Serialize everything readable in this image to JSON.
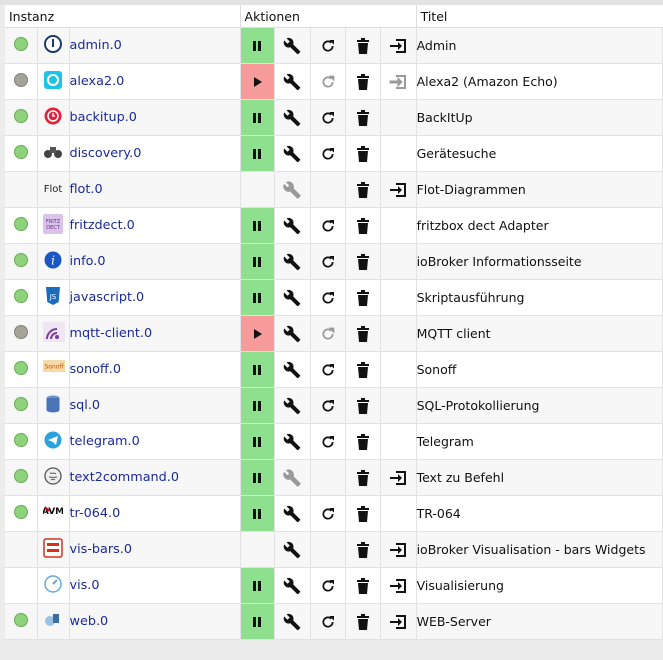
{
  "headers": {
    "instance": "Instanz",
    "actions": "Aktionen",
    "title": "Titel"
  },
  "colors": {
    "running": "#8ee08e",
    "stopped": "#f79a9a",
    "led_ok": "#8ed37c",
    "led_off": "#a4a49a",
    "link": "#1a2a9a"
  },
  "rows": [
    {
      "led": "ok",
      "icon": "admin-icon",
      "name": "admin.0",
      "run": "running",
      "settings": true,
      "restart": true,
      "delete": true,
      "open": true,
      "title": "Admin"
    },
    {
      "led": "off",
      "icon": "alexa-icon",
      "name": "alexa2.0",
      "run": "stopped",
      "settings": true,
      "restart": "dim",
      "delete": true,
      "open": "dim",
      "title": "Alexa2 (Amazon Echo)"
    },
    {
      "led": "ok",
      "icon": "backitup-icon",
      "name": "backitup.0",
      "run": "running",
      "settings": true,
      "restart": true,
      "delete": true,
      "open": false,
      "title": "BackItUp"
    },
    {
      "led": "ok",
      "icon": "binoculars-icon",
      "name": "discovery.0",
      "run": "running",
      "settings": true,
      "restart": true,
      "delete": true,
      "open": false,
      "title": "Gerätesuche"
    },
    {
      "led": "none",
      "icon": "flot-icon",
      "name": "flot.0",
      "run": "none",
      "settings": "dim",
      "restart": false,
      "delete": true,
      "open": true,
      "title": "Flot-Diagrammen",
      "icon_text": "Flot"
    },
    {
      "led": "ok",
      "icon": "fritzdect-icon",
      "name": "fritzdect.0",
      "run": "running",
      "settings": true,
      "restart": true,
      "delete": true,
      "open": false,
      "title": "fritzbox dect Adapter"
    },
    {
      "led": "ok",
      "icon": "info-icon",
      "name": "info.0",
      "run": "running",
      "settings": true,
      "restart": true,
      "delete": true,
      "open": false,
      "title": "ioBroker Informationsseite"
    },
    {
      "led": "ok",
      "icon": "javascript-icon",
      "name": "javascript.0",
      "run": "running",
      "settings": true,
      "restart": true,
      "delete": true,
      "open": false,
      "title": "Skriptausführung"
    },
    {
      "led": "off",
      "icon": "mqtt-icon",
      "name": "mqtt-client.0",
      "run": "stopped",
      "settings": true,
      "restart": "dim",
      "delete": true,
      "open": false,
      "title": "MQTT client"
    },
    {
      "led": "ok",
      "icon": "sonoff-icon",
      "name": "sonoff.0",
      "run": "running",
      "settings": true,
      "restart": true,
      "delete": true,
      "open": false,
      "title": "Sonoff"
    },
    {
      "led": "ok",
      "icon": "database-icon",
      "name": "sql.0",
      "run": "running",
      "settings": true,
      "restart": true,
      "delete": true,
      "open": false,
      "title": "SQL-Protokollierung"
    },
    {
      "led": "ok",
      "icon": "telegram-icon",
      "name": "telegram.0",
      "run": "running",
      "settings": true,
      "restart": true,
      "delete": true,
      "open": false,
      "title": "Telegram"
    },
    {
      "led": "ok",
      "icon": "brain-icon",
      "name": "text2command.0",
      "run": "running",
      "settings": "dim",
      "restart": false,
      "delete": true,
      "open": true,
      "title": "Text zu Befehl"
    },
    {
      "led": "ok",
      "icon": "avm-icon",
      "name": "tr-064.0",
      "run": "running",
      "settings": true,
      "restart": true,
      "delete": true,
      "open": false,
      "title": "TR-064"
    },
    {
      "led": "none",
      "icon": "vis-bars-icon",
      "name": "vis-bars.0",
      "run": "none",
      "settings": true,
      "restart": false,
      "delete": true,
      "open": true,
      "title": "ioBroker Visualisation - bars Widgets"
    },
    {
      "led": "none",
      "icon": "vis-icon",
      "name": "vis.0",
      "run": "running",
      "settings": true,
      "restart": true,
      "delete": true,
      "open": true,
      "title": "Visualisierung"
    },
    {
      "led": "ok",
      "icon": "web-icon",
      "name": "web.0",
      "run": "running",
      "settings": true,
      "restart": true,
      "delete": true,
      "open": true,
      "title": "WEB-Server"
    }
  ]
}
